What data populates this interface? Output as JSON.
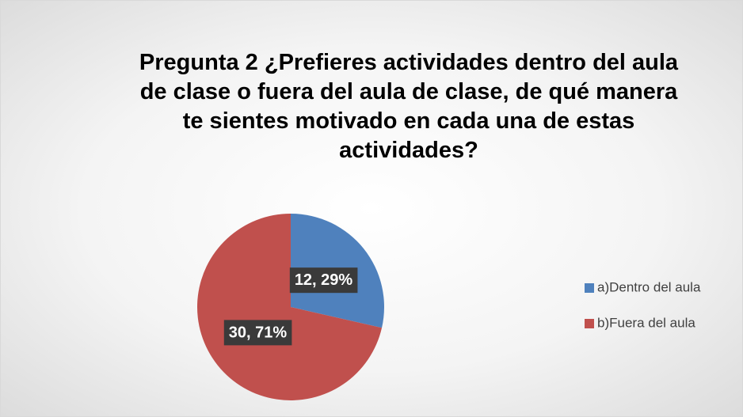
{
  "chart_data": {
    "type": "pie",
    "title": "Pregunta 2 ¿Prefieres actividades dentro del aula de clase o fuera del aula de clase, de qué manera te sientes motivado en cada una de estas actividades?",
    "categories": [
      "a)Dentro del aula",
      "b)Fuera del aula"
    ],
    "values": [
      12,
      30
    ],
    "value_labels": [
      "12, 29%",
      "30, 71%"
    ],
    "colors": [
      "#4f81bd",
      "#c0504d"
    ],
    "legend": "right"
  }
}
